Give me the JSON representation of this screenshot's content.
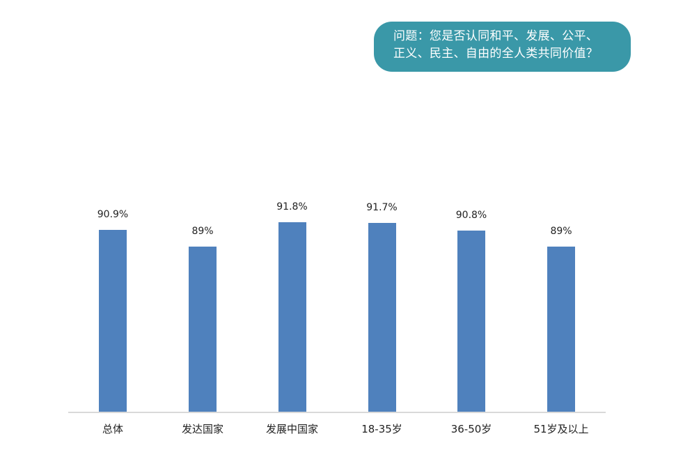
{
  "callout": {
    "line1": "问题：您是否认同和平、发展、公平、",
    "line2": "正义、民主、自由的全人类共同价值？",
    "color": "#3a98a8"
  },
  "chart_data": {
    "type": "bar",
    "title": "问题：您是否认同和平、发展、公平、正义、民主、自由的全人类共同价值？",
    "xlabel": "",
    "ylabel": "",
    "categories": [
      "总体",
      "发达国家",
      "发展中国家",
      "18-35岁",
      "36-50岁",
      "51岁及以上"
    ],
    "values": [
      90.9,
      89,
      91.8,
      91.7,
      90.8,
      89
    ],
    "value_labels": [
      "90.9%",
      "89%",
      "91.8%",
      "91.7%",
      "90.8%",
      "89%"
    ],
    "ylim": [
      70,
      100
    ],
    "grid": false,
    "legend": "none",
    "bar_color": "#4f81bd"
  }
}
